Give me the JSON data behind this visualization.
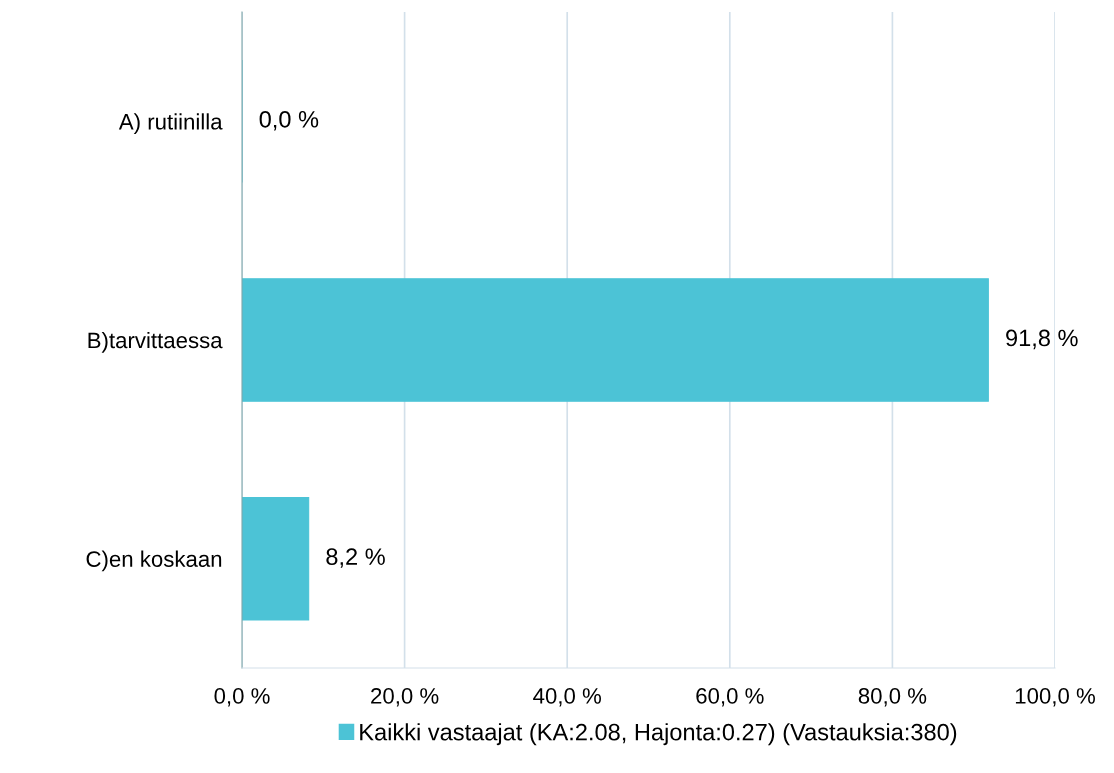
{
  "chart_data": {
    "type": "bar",
    "orientation": "horizontal",
    "categories": [
      "A) rutiinilla",
      "B)tarvittaessa",
      "C)en koskaan"
    ],
    "series": [
      {
        "name": "Kaikki vastaajat (KA:2.08, Hajonta:0.27) (Vastauksia:380)",
        "color": "#4cc3d6",
        "values": [
          0.0,
          91.8,
          8.2
        ],
        "value_labels": [
          "0,0 %",
          "91,8 %",
          "8,2 %"
        ]
      }
    ],
    "xlim": [
      0,
      100
    ],
    "xticks": [
      {
        "value": 0,
        "label": "0,0 %"
      },
      {
        "value": 20,
        "label": "20,0 %"
      },
      {
        "value": 40,
        "label": "40,0 %"
      },
      {
        "value": 60,
        "label": "60,0 %"
      },
      {
        "value": 80,
        "label": "80,0 %"
      },
      {
        "value": 100,
        "label": "100,0 %"
      }
    ],
    "grid": "x",
    "legend": "bottom"
  }
}
